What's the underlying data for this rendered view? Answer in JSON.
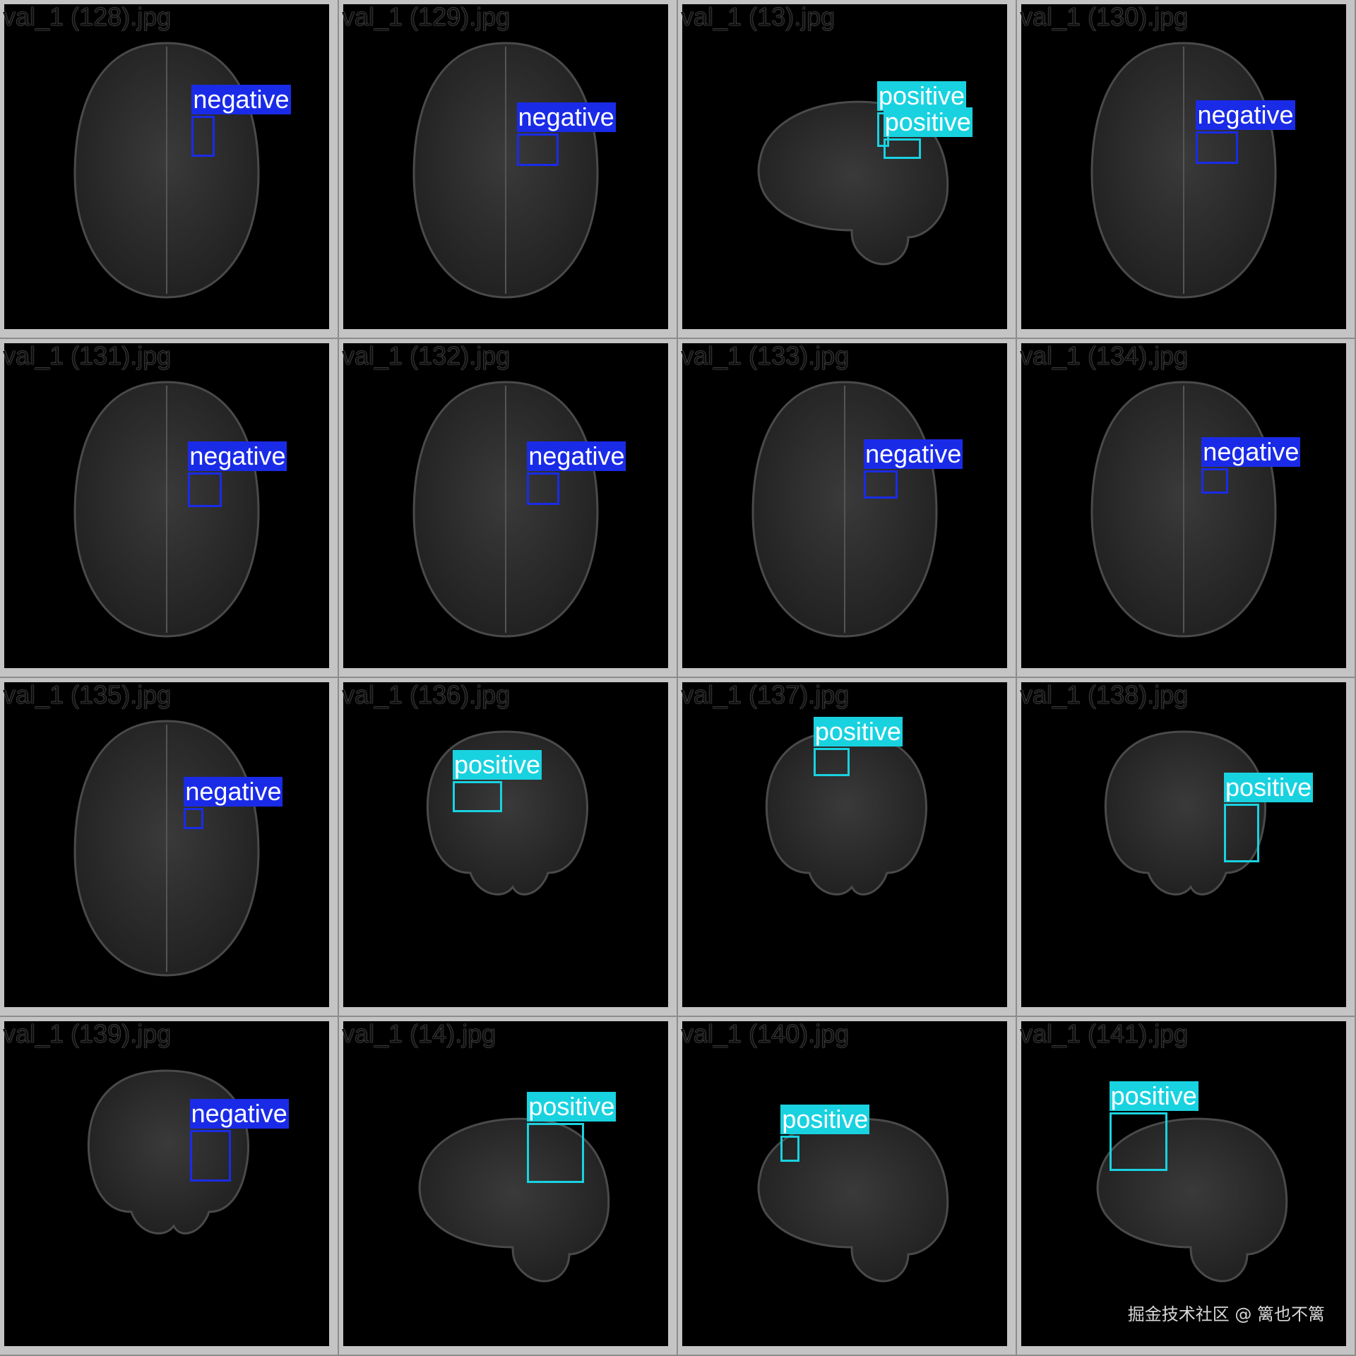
{
  "colors": {
    "negative": "#1a2be8",
    "positive": "#19d2e0"
  },
  "tiles": [
    {
      "filename": "val_1 (128).jpg",
      "view": "axial",
      "detections": [
        {
          "label": "negative",
          "class": "negative",
          "bx": [
            0.577,
            0.344,
            0.071,
            0.125
          ]
        }
      ]
    },
    {
      "filename": "val_1 (131).jpg",
      "view": "axial",
      "detections": [
        {
          "label": "negative",
          "class": "negative",
          "bx": [
            0.566,
            0.398,
            0.103,
            0.107
          ]
        }
      ]
    },
    {
      "filename": "val_1 (135).jpg",
      "view": "axial",
      "detections": [
        {
          "label": "negative",
          "class": "negative",
          "bx": [
            0.553,
            0.387,
            0.06,
            0.065
          ]
        }
      ]
    },
    {
      "filename": "val_1 (139).jpg",
      "view": "coronal",
      "detections": [
        {
          "label": "negative",
          "class": "negative",
          "bx": [
            0.571,
            0.334,
            0.127,
            0.16
          ]
        }
      ]
    },
    {
      "filename": "val_1 (129).jpg",
      "view": "axial",
      "detections": [
        {
          "label": "negative",
          "class": "negative",
          "bx": [
            0.534,
            0.398,
            0.129,
            0.1
          ]
        }
      ]
    },
    {
      "filename": "val_1 (132).jpg",
      "view": "axial",
      "detections": [
        {
          "label": "negative",
          "class": "negative",
          "bx": [
            0.566,
            0.398,
            0.1,
            0.1
          ]
        }
      ]
    },
    {
      "filename": "val_1 (136).jpg",
      "view": "coronal",
      "detections": [
        {
          "label": "positive",
          "class": "positive",
          "bx": [
            0.337,
            0.304,
            0.153,
            0.095
          ]
        }
      ]
    },
    {
      "filename": "val_1 (14).jpg",
      "view": "sagittal",
      "detections": [
        {
          "label": "positive",
          "class": "positive",
          "bx": [
            0.566,
            0.313,
            0.176,
            0.184
          ]
        }
      ]
    },
    {
      "filename": "val_1 (13).jpg",
      "view": "sagittal",
      "detections": [
        {
          "label": "positive",
          "class": "positive",
          "bx": [
            0.6,
            0.333,
            0.037,
            0.107
          ]
        },
        {
          "label": "positive",
          "class": "positive",
          "bx": [
            0.619,
            0.412,
            0.116,
            0.065
          ]
        }
      ]
    },
    {
      "filename": "val_1 (133).jpg",
      "view": "axial",
      "detections": [
        {
          "label": "negative",
          "class": "negative",
          "bx": [
            0.559,
            0.391,
            0.103,
            0.087
          ]
        }
      ]
    },
    {
      "filename": "val_1 (137).jpg",
      "view": "coronal",
      "detections": [
        {
          "label": "positive",
          "class": "positive",
          "bx": [
            0.404,
            0.202,
            0.111,
            0.087
          ]
        }
      ]
    },
    {
      "filename": "val_1 (140).jpg",
      "view": "sagittal",
      "detections": [
        {
          "label": "positive",
          "class": "positive",
          "bx": [
            0.303,
            0.352,
            0.058,
            0.08
          ]
        }
      ]
    },
    {
      "filename": "val_1 (130).jpg",
      "view": "axial",
      "detections": [
        {
          "label": "negative",
          "class": "negative",
          "bx": [
            0.538,
            0.391,
            0.129,
            0.1
          ]
        }
      ]
    },
    {
      "filename": "val_1 (134).jpg",
      "view": "axial",
      "detections": [
        {
          "label": "negative",
          "class": "negative",
          "bx": [
            0.555,
            0.385,
            0.082,
            0.078
          ]
        }
      ]
    },
    {
      "filename": "val_1 (138).jpg",
      "view": "coronal",
      "detections": [
        {
          "label": "positive",
          "class": "positive",
          "bx": [
            0.624,
            0.374,
            0.108,
            0.18
          ]
        }
      ]
    },
    {
      "filename": "val_1 (141).jpg",
      "view": "sagittal",
      "detections": [
        {
          "label": "positive",
          "class": "positive",
          "bx": [
            0.271,
            0.28,
            0.18,
            0.18
          ]
        }
      ]
    }
  ],
  "watermark": "掘金技术社区 @ 篱也不篱"
}
